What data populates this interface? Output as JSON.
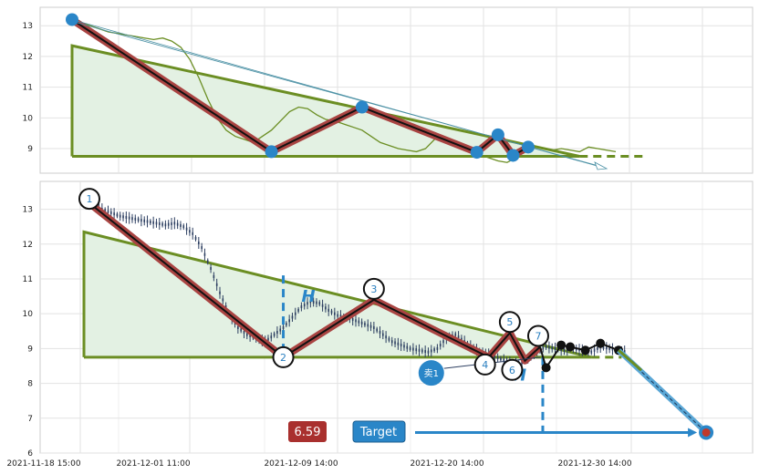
{
  "chart_data": [
    {
      "type": "line",
      "title": "",
      "xlabel": "",
      "ylabel": "",
      "ylim": [
        8.2,
        13.6
      ],
      "yticks": [
        9,
        10,
        11,
        12,
        13
      ],
      "grid": true,
      "price_series": {
        "name": "",
        "color": "#6b8e23",
        "x_index": [
          0,
          3,
          6,
          9,
          12,
          15,
          18,
          21,
          24,
          27,
          30,
          33,
          36,
          39,
          42,
          45,
          48,
          51,
          54,
          57,
          60,
          63,
          66,
          69,
          72,
          75,
          78,
          81,
          84,
          87,
          90,
          93,
          96,
          99,
          102,
          105,
          108,
          111,
          114,
          117,
          120,
          123,
          126,
          129,
          132,
          135,
          138,
          141,
          144,
          147,
          150,
          153,
          156,
          159,
          162,
          165,
          168,
          171,
          174,
          177,
          180
        ],
        "values": [
          13.2,
          13.1,
          13.0,
          12.9,
          12.8,
          12.75,
          12.7,
          12.65,
          12.6,
          12.55,
          12.6,
          12.5,
          12.3,
          11.9,
          11.3,
          10.6,
          10.0,
          9.6,
          9.4,
          9.3,
          9.2,
          9.4,
          9.6,
          9.9,
          10.2,
          10.35,
          10.3,
          10.1,
          9.95,
          9.9,
          9.8,
          9.7,
          9.6,
          9.4,
          9.2,
          9.1,
          9.0,
          8.95,
          8.9,
          9.0,
          9.3,
          9.4,
          9.2,
          9.0,
          8.9,
          8.8,
          8.7,
          8.6,
          8.55,
          8.7,
          8.95,
          9.05,
          9.0,
          8.95,
          9.0,
          8.95,
          8.9,
          9.05,
          9.0,
          8.95,
          8.9
        ]
      },
      "zigzag_points": [
        {
          "x_index": 0,
          "value": 13.2
        },
        {
          "x_index": 66,
          "value": 8.9
        },
        {
          "x_index": 96,
          "value": 10.35
        },
        {
          "x_index": 134,
          "value": 8.88
        },
        {
          "x_index": 141,
          "value": 9.45
        },
        {
          "x_index": 146,
          "value": 8.78
        },
        {
          "x_index": 151,
          "value": 9.05
        }
      ],
      "triangle": {
        "apex_value": 12.35,
        "base_value": 8.75,
        "start_index": 0,
        "end_index": 168,
        "dashed_to_index": 190
      },
      "colors": {
        "zigzag": "#a94442",
        "triangle": "#6b8e23",
        "fill": "#e3f1e3",
        "markers": "#2a86c8",
        "arrow": "#4a90a4"
      }
    },
    {
      "type": "line",
      "title": "",
      "xlabel": "",
      "ylabel": "",
      "ylim": [
        6.0,
        13.8
      ],
      "yticks": [
        6,
        7,
        8,
        9,
        10,
        11,
        12,
        13
      ],
      "xticks": [
        "2021-11-18 15:00",
        "2021-12-01 11:00",
        "2021-12-09 14:00",
        "2021-12-20 14:00",
        "2021-12-30 14:00"
      ],
      "grid": true,
      "waves": [
        {
          "label": "1",
          "x_index": 0,
          "value": 13.3
        },
        {
          "label": "2",
          "x_index": 66,
          "value": 8.75
        },
        {
          "label": "3",
          "x_index": 96,
          "value": 10.4
        },
        {
          "label": "4",
          "x_index": 134,
          "value": 8.75
        },
        {
          "label": "5",
          "x_index": 141,
          "value": 9.45
        },
        {
          "label": "6",
          "x_index": 146,
          "value": 8.65
        },
        {
          "label": "7",
          "x_index": 151,
          "value": 9.05
        }
      ],
      "h_label": "H",
      "target_label": "Target",
      "target_value": "6.59",
      "sell_label": "卖1",
      "forecast_points": [
        {
          "x_index": 153,
          "value": 8.45
        },
        {
          "x_index": 158,
          "value": 9.1
        },
        {
          "x_index": 161,
          "value": 9.05
        },
        {
          "x_index": 166,
          "value": 8.95
        },
        {
          "x_index": 171,
          "value": 9.15
        },
        {
          "x_index": 177,
          "value": 8.95
        }
      ],
      "target_point": {
        "x_index": 206,
        "value": 6.59
      },
      "colors": {
        "zigzag": "#a94442",
        "triangle": "#6b8e23",
        "fill": "#e3f1e3",
        "h_line": "#2a86c8",
        "target_button": "#2a86c8",
        "value_button": "#a9302e",
        "candles": "#2c3e60",
        "forecast_line": "#5aa7d6"
      }
    }
  ]
}
